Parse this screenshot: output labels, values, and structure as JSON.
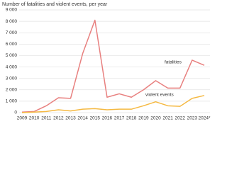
{
  "chart_data": {
    "type": "line",
    "title": "Number of fatalities and violent events, per year",
    "categories": [
      "2009",
      "2010",
      "2011",
      "2012",
      "2013",
      "2014",
      "2015",
      "2016",
      "2017",
      "2018",
      "2019",
      "2020",
      "2021",
      "2022",
      "2023",
      "2024*"
    ],
    "series": [
      {
        "name": "fatalities",
        "color": "#e8807f",
        "values": [
          50,
          100,
          600,
          1300,
          1250,
          5200,
          8100,
          1350,
          1650,
          1350,
          2000,
          2800,
          2150,
          2150,
          4600,
          4150
        ]
      },
      {
        "name": "violent events",
        "color": "#f5b942",
        "values": [
          0,
          50,
          100,
          250,
          150,
          300,
          350,
          250,
          300,
          300,
          600,
          950,
          600,
          550,
          1250,
          1500
        ]
      }
    ],
    "ylim": [
      0,
      9000
    ],
    "yticks": [
      0,
      {
        "value": 1000,
        "label": "1 000"
      },
      {
        "value": 2000,
        "label": "2 000"
      },
      {
        "value": 3000,
        "label": "3 000"
      },
      {
        "value": 4000,
        "label": "4 000"
      },
      {
        "value": 5000,
        "label": "5 000"
      },
      {
        "value": 6000,
        "label": "6 000"
      },
      {
        "value": 7000,
        "label": "7 000"
      },
      {
        "value": 8000,
        "label": "8 000"
      },
      {
        "value": 9000,
        "label": "9 000"
      }
    ],
    "grid": true
  }
}
